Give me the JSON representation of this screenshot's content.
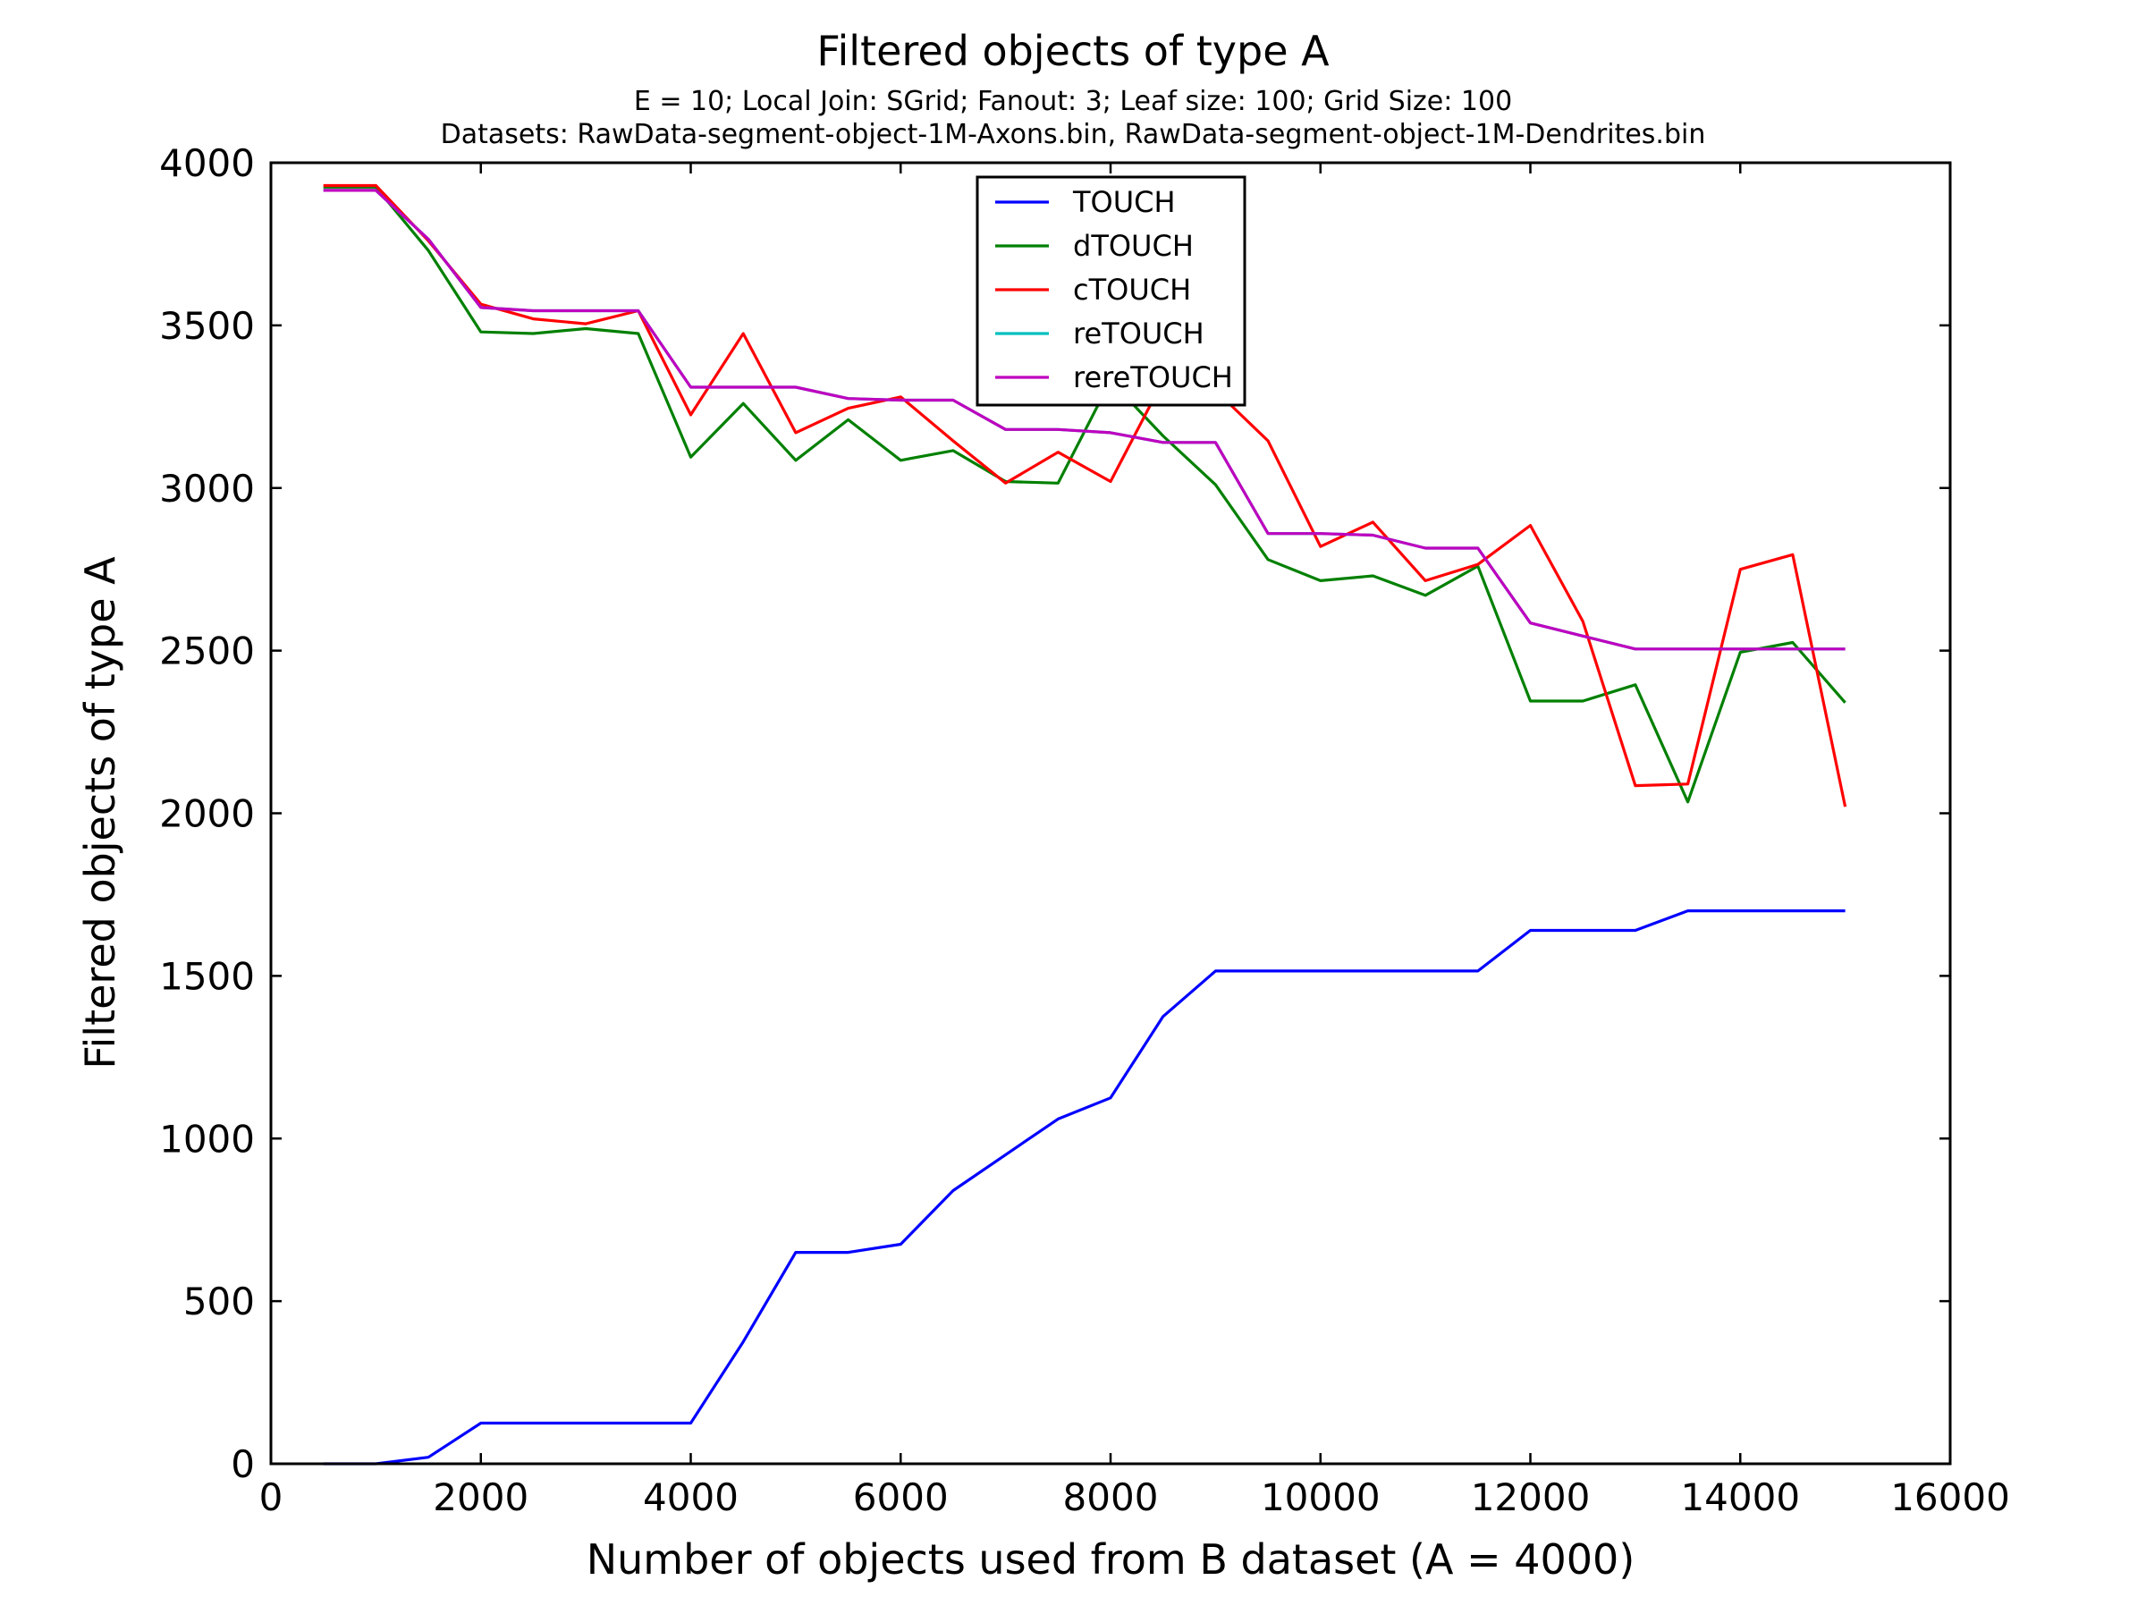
{
  "chart_data": {
    "type": "line",
    "title": "Filtered objects of type A",
    "subtitle_lines": [
      "E = 10; Local Join: SGrid; Fanout: 3; Leaf size: 100; Grid Size: 100",
      "Datasets: RawData-segment-object-1M-Axons.bin, RawData-segment-object-1M-Dendrites.bin"
    ],
    "xlabel": "Number of objects used from B dataset (A = 4000)",
    "ylabel": "Filtered objects of type A",
    "xlim": [
      0,
      16000
    ],
    "ylim": [
      0,
      4000
    ],
    "xticks": [
      0,
      2000,
      4000,
      6000,
      8000,
      10000,
      12000,
      14000,
      16000
    ],
    "yticks": [
      0,
      500,
      1000,
      1500,
      2000,
      2500,
      3000,
      3500,
      4000
    ],
    "grid": false,
    "legend_position": "top-center",
    "x": [
      500,
      1000,
      1500,
      2000,
      2500,
      3000,
      3500,
      4000,
      4500,
      5000,
      5500,
      6000,
      6500,
      7000,
      7500,
      8000,
      8500,
      9000,
      9500,
      10000,
      10500,
      11000,
      11500,
      12000,
      12500,
      13000,
      13500,
      14000,
      14500,
      15000
    ],
    "series": [
      {
        "name": "TOUCH",
        "color": "#0000ff",
        "values": [
          0,
          0,
          20,
          125,
          125,
          125,
          125,
          125,
          375,
          650,
          650,
          675,
          840,
          950,
          1060,
          1125,
          1375,
          1515,
          1515,
          1515,
          1515,
          1515,
          1515,
          1640,
          1640,
          1640,
          1700,
          1700,
          1700,
          1700
        ]
      },
      {
        "name": "dTOUCH",
        "color": "#008000",
        "values": [
          3925,
          3925,
          3730,
          3480,
          3475,
          3490,
          3475,
          3095,
          3260,
          3085,
          3210,
          3085,
          3115,
          3020,
          3015,
          3330,
          3160,
          3010,
          2780,
          2715,
          2730,
          2670,
          2760,
          2345,
          2345,
          2395,
          2035,
          2495,
          2525,
          2340
        ]
      },
      {
        "name": "cTOUCH",
        "color": "#ff0000",
        "values": [
          3930,
          3930,
          3760,
          3565,
          3520,
          3505,
          3545,
          3225,
          3475,
          3170,
          3245,
          3280,
          3145,
          3015,
          3110,
          3020,
          3330,
          3300,
          3145,
          2820,
          2895,
          2715,
          2765,
          2885,
          2590,
          2085,
          2090,
          2750,
          2795,
          2020
        ]
      },
      {
        "name": "reTOUCH",
        "color": "#00bfbf",
        "values": [
          3915,
          3915,
          3765,
          3555,
          3545,
          3545,
          3545,
          3310,
          3310,
          3310,
          3275,
          3270,
          3270,
          3180,
          3180,
          3170,
          3140,
          3140,
          2860,
          2860,
          2855,
          2815,
          2815,
          2585,
          2545,
          2505,
          2505,
          2505,
          2505,
          2505
        ]
      },
      {
        "name": "rereTOUCH",
        "color": "#bf00bf",
        "values": [
          3915,
          3915,
          3765,
          3555,
          3545,
          3545,
          3545,
          3310,
          3310,
          3310,
          3275,
          3270,
          3270,
          3180,
          3180,
          3170,
          3140,
          3140,
          2860,
          2860,
          2855,
          2815,
          2815,
          2585,
          2545,
          2505,
          2505,
          2505,
          2505,
          2505
        ]
      }
    ]
  }
}
